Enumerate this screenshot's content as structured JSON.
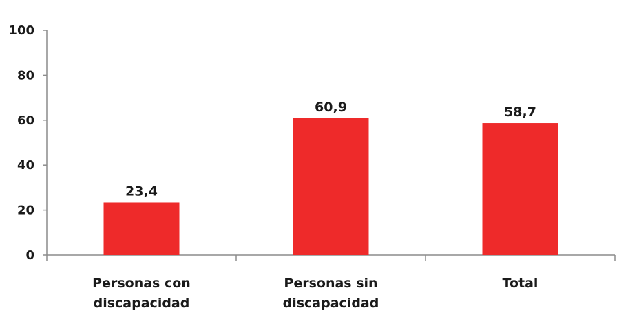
{
  "chart_data": {
    "type": "bar",
    "title": "",
    "xlabel": "",
    "ylabel": "",
    "categories": [
      [
        "Personas con",
        "discapacidad"
      ],
      [
        "Personas sin",
        "discapacidad"
      ],
      [
        "Total"
      ]
    ],
    "values": [
      23.4,
      60.9,
      58.7
    ],
    "value_labels": [
      "23,4",
      "60,9",
      "58,7"
    ],
    "ylim": [
      0,
      100
    ],
    "yticks": [
      0,
      20,
      40,
      60,
      80,
      100
    ],
    "ytick_labels": [
      "0",
      "20",
      "40",
      "60",
      "80",
      "100"
    ],
    "bar_color": "#ee2a2a",
    "grid": false,
    "legend": "none"
  }
}
